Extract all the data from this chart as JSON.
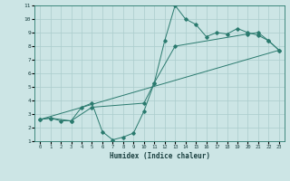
{
  "xlabel": "Humidex (Indice chaleur)",
  "xlim": [
    -0.5,
    23.5
  ],
  "ylim": [
    1,
    11
  ],
  "xticks": [
    0,
    1,
    2,
    3,
    4,
    5,
    6,
    7,
    8,
    9,
    10,
    11,
    12,
    13,
    14,
    15,
    16,
    17,
    18,
    19,
    20,
    21,
    22,
    23
  ],
  "yticks": [
    1,
    2,
    3,
    4,
    5,
    6,
    7,
    8,
    9,
    10,
    11
  ],
  "background_color": "#cce5e5",
  "grid_color": "#aacccc",
  "line_color": "#2a7a6e",
  "line1_x": [
    0,
    1,
    2,
    3,
    4,
    5,
    6,
    7,
    8,
    9,
    10,
    11,
    12,
    13,
    14,
    15,
    16,
    17,
    18,
    19,
    20,
    21,
    22,
    23
  ],
  "line1_y": [
    2.6,
    2.7,
    2.5,
    2.5,
    3.5,
    3.8,
    1.7,
    1.1,
    1.3,
    1.6,
    3.2,
    5.3,
    8.4,
    11.0,
    10.0,
    9.6,
    8.7,
    9.0,
    8.9,
    9.3,
    9.0,
    8.8,
    8.4,
    7.7
  ],
  "line2_x": [
    0,
    1,
    3,
    5,
    10,
    11,
    13,
    20,
    21,
    22,
    23
  ],
  "line2_y": [
    2.6,
    2.7,
    2.5,
    3.5,
    3.8,
    5.3,
    8.0,
    8.9,
    9.0,
    8.4,
    7.7
  ],
  "line3_x": [
    0,
    23
  ],
  "line3_y": [
    2.6,
    7.7
  ],
  "figsize": [
    3.2,
    2.0
  ],
  "dpi": 100
}
